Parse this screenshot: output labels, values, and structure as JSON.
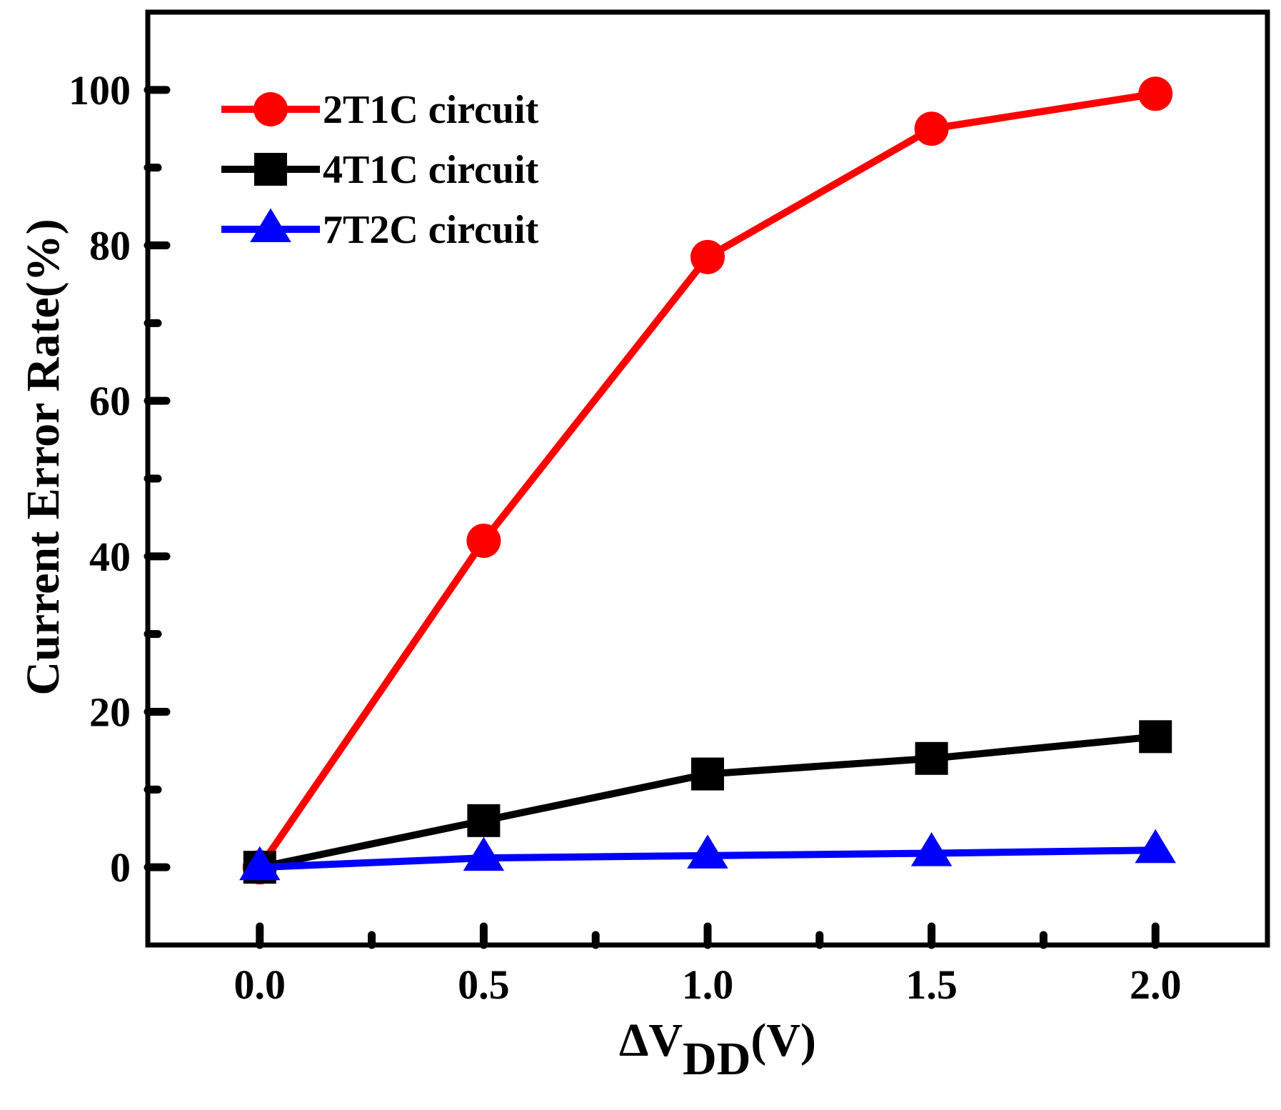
{
  "chart_data": {
    "type": "line",
    "title": "",
    "xlabel": {
      "prefix": "ΔV",
      "subscript": "DD",
      "suffix": "(V)"
    },
    "ylabel": "Current Error Rate(%)",
    "xlim": [
      -0.25,
      2.25
    ],
    "ylim": [
      -10,
      110
    ],
    "x_ticks": [
      0.0,
      0.5,
      1.0,
      1.5,
      2.0
    ],
    "x_tick_labels": [
      "0.0",
      "0.5",
      "1.0",
      "1.5",
      "2.0"
    ],
    "y_ticks": [
      0,
      20,
      40,
      60,
      80,
      100
    ],
    "y_tick_labels": [
      "0",
      "20",
      "40",
      "60",
      "80",
      "100"
    ],
    "x_minor_ticks": [
      0.25,
      0.75,
      1.25,
      1.75
    ],
    "y_minor_ticks": [
      10,
      30,
      50,
      70,
      90
    ],
    "legend_position": "top-left",
    "x": [
      0.0,
      0.5,
      1.0,
      1.5,
      2.0
    ],
    "series": [
      {
        "name": "2T1C circuit",
        "color": "#ff0000",
        "marker": "circle",
        "values": [
          0,
          42,
          78.5,
          95,
          99.5
        ]
      },
      {
        "name": "4T1C circuit",
        "color": "#000000",
        "marker": "square",
        "values": [
          0,
          6,
          12,
          14,
          16.8
        ]
      },
      {
        "name": "7T2C circuit",
        "color": "#0000ff",
        "marker": "triangle",
        "values": [
          0,
          1.2,
          1.5,
          1.8,
          2.2
        ]
      }
    ]
  }
}
